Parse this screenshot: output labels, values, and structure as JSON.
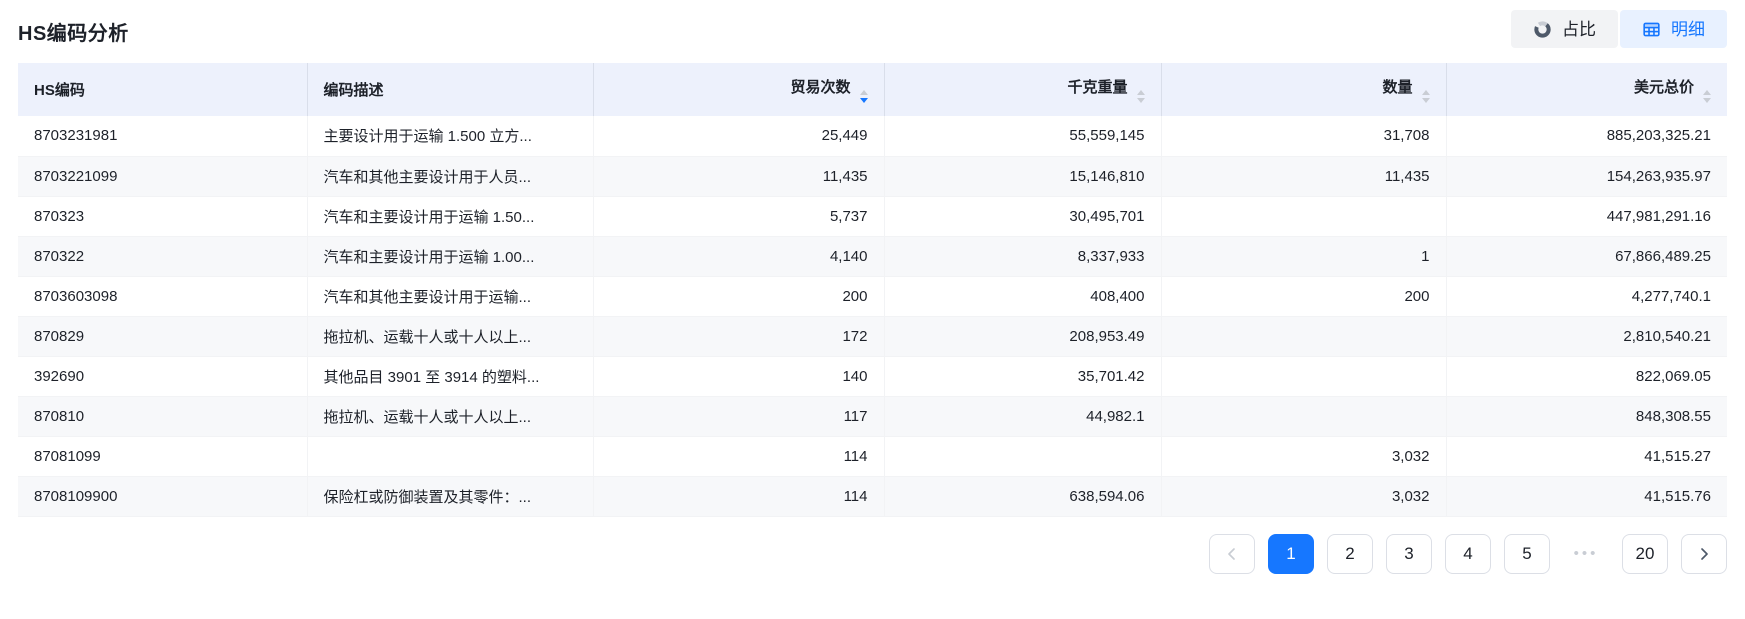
{
  "page": {
    "title": "HS编码分析"
  },
  "view_toggle": {
    "options": [
      {
        "label": "占比",
        "icon": "donut-chart-icon",
        "active": false
      },
      {
        "label": "明细",
        "icon": "table-icon",
        "active": true
      }
    ]
  },
  "table": {
    "columns": [
      {
        "label": "HS编码",
        "align": "left",
        "sortable": false,
        "sort": null
      },
      {
        "label": "编码描述",
        "align": "left",
        "sortable": false,
        "sort": null
      },
      {
        "label": "贸易次数",
        "align": "right",
        "sortable": true,
        "sort": "desc"
      },
      {
        "label": "千克重量",
        "align": "right",
        "sortable": true,
        "sort": null
      },
      {
        "label": "数量",
        "align": "right",
        "sortable": true,
        "sort": null
      },
      {
        "label": "美元总价",
        "align": "right",
        "sortable": true,
        "sort": null
      }
    ],
    "rows": [
      [
        "8703231981",
        "主要设计用于运输 1.500 立方...",
        "25,449",
        "55,559,145",
        "31,708",
        "885,203,325.21"
      ],
      [
        "8703221099",
        "汽车和其他主要设计用于人员...",
        "11,435",
        "15,146,810",
        "11,435",
        "154,263,935.97"
      ],
      [
        "870323",
        "汽车和主要设计用于运输 1.50...",
        "5,737",
        "30,495,701",
        "",
        "447,981,291.16"
      ],
      [
        "870322",
        "汽车和主要设计用于运输 1.00...",
        "4,140",
        "8,337,933",
        "1",
        "67,866,489.25"
      ],
      [
        "8703603098",
        "汽车和其他主要设计用于运输...",
        "200",
        "408,400",
        "200",
        "4,277,740.1"
      ],
      [
        "870829",
        "拖拉机、运载十人或十人以上...",
        "172",
        "208,953.49",
        "",
        "2,810,540.21"
      ],
      [
        "392690",
        "其他品目 3901 至 3914 的塑料...",
        "140",
        "35,701.42",
        "",
        "822,069.05"
      ],
      [
        "870810",
        "拖拉机、运载十人或十人以上...",
        "117",
        "44,982.1",
        "",
        "848,308.55"
      ],
      [
        "87081099",
        "",
        "114",
        "",
        "3,032",
        "41,515.27"
      ],
      [
        "8708109900",
        "保险杠或防御装置及其零件：...",
        "114",
        "638,594.06",
        "3,032",
        "41,515.76"
      ]
    ]
  },
  "pagination": {
    "active_page": "1",
    "pages": [
      "1",
      "2",
      "3",
      "4",
      "5"
    ],
    "ellipsis": "•••",
    "trailing_page": "20"
  },
  "colors": {
    "accent": "#1677ff",
    "header_bg": "#edf1fc",
    "toggle_active_bg": "#e8f1ff",
    "toggle_inactive_bg": "#f2f3f5",
    "zebra_row_bg": "#f7f8fa",
    "text": "#1d2129",
    "muted": "#c9cdd4"
  }
}
